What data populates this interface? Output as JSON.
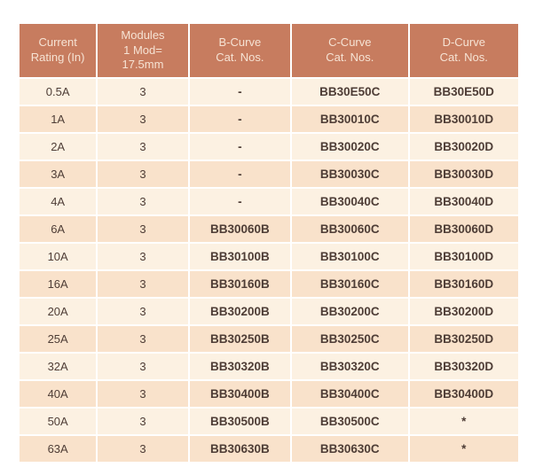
{
  "colors": {
    "header_bg": "#c77c5f",
    "header_text": "#f6e3d4",
    "row_light": "#fcf1e2",
    "row_dark": "#f9e2cb",
    "body_text": "#4e3d36",
    "separator": "#ffffff",
    "page_bg": "#ffffff"
  },
  "table": {
    "headers": [
      "Current\nRating (In)",
      "Modules\n1 Mod=\n17.5mm",
      "B-Curve\nCat. Nos.",
      "C-Curve\nCat. Nos.",
      "D-Curve\nCat. Nos."
    ],
    "rows": [
      {
        "cells": [
          "0.5A",
          "3",
          "-",
          "BB30E50C",
          "BB30E50D"
        ]
      },
      {
        "cells": [
          "1A",
          "3",
          "-",
          "BB30010C",
          "BB30010D"
        ]
      },
      {
        "cells": [
          "2A",
          "3",
          "-",
          "BB30020C",
          "BB30020D"
        ]
      },
      {
        "cells": [
          "3A",
          "3",
          "-",
          "BB30030C",
          "BB30030D"
        ]
      },
      {
        "cells": [
          "4A",
          "3",
          "-",
          "BB30040C",
          "BB30040D"
        ]
      },
      {
        "cells": [
          "6A",
          "3",
          "BB30060B",
          "BB30060C",
          "BB30060D"
        ]
      },
      {
        "cells": [
          "10A",
          "3",
          "BB30100B",
          "BB30100C",
          "BB30100D"
        ]
      },
      {
        "cells": [
          "16A",
          "3",
          "BB30160B",
          "BB30160C",
          "BB30160D"
        ]
      },
      {
        "cells": [
          "20A",
          "3",
          "BB30200B",
          "BB30200C",
          "BB30200D"
        ]
      },
      {
        "cells": [
          "25A",
          "3",
          "BB30250B",
          "BB30250C",
          "BB30250D"
        ]
      },
      {
        "cells": [
          "32A",
          "3",
          "BB30320B",
          "BB30320C",
          "BB30320D"
        ]
      },
      {
        "cells": [
          "40A",
          "3",
          "BB30400B",
          "BB30400C",
          "BB30400D"
        ]
      },
      {
        "cells": [
          "50A",
          "3",
          "BB30500B",
          "BB30500C",
          "*"
        ]
      },
      {
        "cells": [
          "63A",
          "3",
          "BB30630B",
          "BB30630C",
          "*"
        ]
      }
    ]
  }
}
